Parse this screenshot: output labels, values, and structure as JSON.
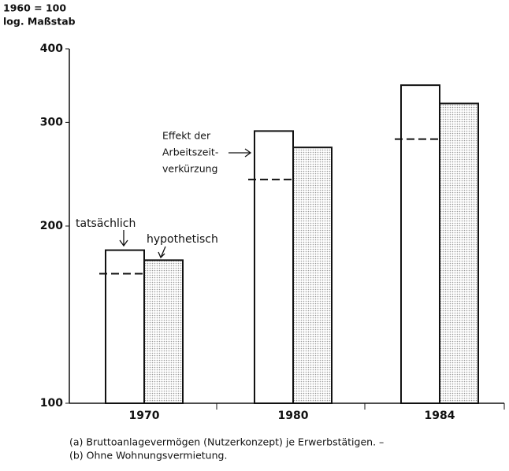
{
  "chart_data": {
    "type": "bar",
    "ylabel": [
      "1960 = 100",
      "log. Maßstab"
    ],
    "categories": [
      "1970",
      "1980",
      "1984"
    ],
    "series": [
      {
        "name": "tatsächlich",
        "color": "#ffffff",
        "values": [
          182,
          290,
          347
        ]
      },
      {
        "name": "hypothetisch",
        "color": "#999999",
        "values": [
          175,
          272,
          323
        ]
      }
    ],
    "effect": {
      "label": [
        "Effekt der",
        "Arbeitszeit-",
        "verkürzung"
      ],
      "values": [
        166,
        240,
        281
      ]
    },
    "ylim": [
      100,
      400
    ],
    "yticks": [
      100,
      200,
      300,
      400
    ],
    "log_scale": true,
    "footnotes": [
      "(a) Bruttoanlagevermögen (Nutzerkonzept) je Erwerbstätigen. –",
      "(b) Ohne Wohnungsvermietung."
    ]
  }
}
